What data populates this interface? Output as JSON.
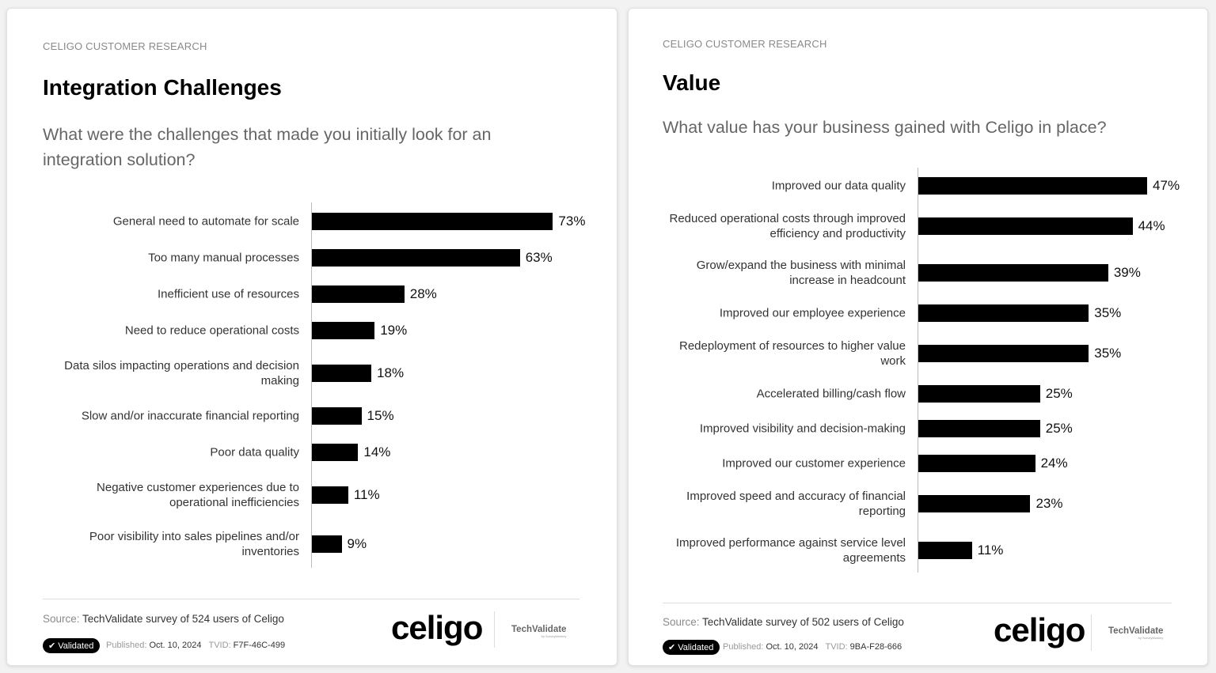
{
  "cards": [
    {
      "kicker": "CELIGO CUSTOMER RESEARCH",
      "title": "Integration Challenges",
      "question": "What were the challenges that made you initially look for an integration solution?",
      "source_label": "Source:",
      "source_text": "TechValidate survey of 524 users of Celigo",
      "badge": "Validated",
      "published_label": "Published:",
      "published_date": "Oct. 10, 2024",
      "tvid_label": "TVID:",
      "tvid": "F7F-46C-499",
      "logo": "celigo",
      "partner_logo": "TechValidate",
      "partner_sub": "by SurveyMonkey"
    },
    {
      "kicker": "CELIGO CUSTOMER RESEARCH",
      "title": "Value",
      "question": "What value has your business gained with Celigo in place?",
      "source_label": "Source:",
      "source_text": "TechValidate survey of 502 users of Celigo",
      "badge": "Validated",
      "published_label": "Published:",
      "published_date": "Oct. 10, 2024",
      "tvid_label": "TVID:",
      "tvid": "9BA-F28-666",
      "logo": "celigo",
      "partner_logo": "TechValidate",
      "partner_sub": "by SurveyMonkey"
    }
  ],
  "chart_data": [
    {
      "type": "bar",
      "orientation": "horizontal",
      "title": "Integration Challenges",
      "categories": [
        "General need to automate for scale",
        "Too many manual processes",
        "Inefficient use of resources",
        "Need to reduce operational costs",
        "Data silos impacting operations and decision making",
        "Slow and/or inaccurate financial reporting",
        "Poor data quality",
        "Negative customer experiences due to operational inefficiencies",
        "Poor visibility into sales pipelines and/or inventories"
      ],
      "values": [
        73,
        63,
        28,
        19,
        18,
        15,
        14,
        11,
        9
      ],
      "value_labels": [
        "73%",
        "63%",
        "28%",
        "19%",
        "18%",
        "15%",
        "14%",
        "11%",
        "9%"
      ],
      "unit": "%",
      "bar_color": "#000000",
      "grid": false
    },
    {
      "type": "bar",
      "orientation": "horizontal",
      "title": "Value",
      "categories": [
        "Improved our data quality",
        "Reduced operational costs through improved efficiency and productivity",
        "Grow/expand the business with minimal increase in headcount",
        "Improved our employee experience",
        "Redeployment of resources to higher value work",
        "Accelerated billing/cash flow",
        "Improved visibility and decision-making",
        "Improved our customer experience",
        "Improved speed and accuracy of financial reporting",
        "Improved performance against service level agreements"
      ],
      "values": [
        47,
        44,
        39,
        35,
        35,
        25,
        25,
        24,
        23,
        11
      ],
      "value_labels": [
        "47%",
        "44%",
        "39%",
        "35%",
        "35%",
        "25%",
        "25%",
        "24%",
        "23%",
        "11%"
      ],
      "unit": "%",
      "bar_color": "#000000",
      "grid": false
    }
  ]
}
